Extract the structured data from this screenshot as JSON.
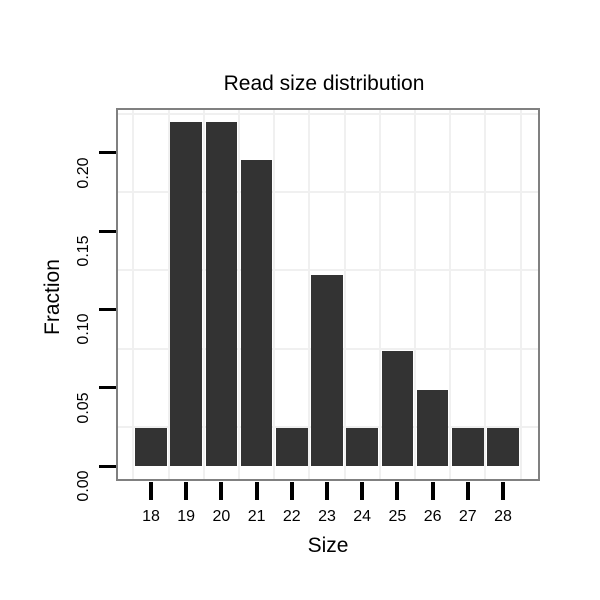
{
  "figure": {
    "background": "#ffffff"
  },
  "chart_data": {
    "type": "bar",
    "title": "Read size distribution",
    "xlabel": "Size",
    "ylabel": "Fraction",
    "categories": [
      "18",
      "19",
      "20",
      "21",
      "22",
      "23",
      "24",
      "25",
      "26",
      "27",
      "28"
    ],
    "values": [
      0.0244,
      0.2195,
      0.2195,
      0.1951,
      0.0244,
      0.122,
      0.0244,
      0.0732,
      0.0488,
      0.0244,
      0.0244
    ],
    "y_tick_labels": [
      "0.00",
      "0.05",
      "0.10",
      "0.15",
      "0.20"
    ],
    "y_tick_values": [
      0,
      0.05,
      0.1,
      0.15,
      0.2
    ],
    "y_minor_gridlines": [
      0.025,
      0.075,
      0.125,
      0.175,
      0.225
    ],
    "ylim": [
      -0.01,
      0.228
    ],
    "legend": "none",
    "grid": "light minor gridlines (horizontal at 0.025 steps between ticks, vertical between categories) on white panel",
    "colors": {
      "bar": "#333333",
      "panel_border": "#808080",
      "gridline": "#f0f0f0",
      "tick": "#000000",
      "text": "#000000",
      "panel_background": "#ffffff"
    }
  }
}
